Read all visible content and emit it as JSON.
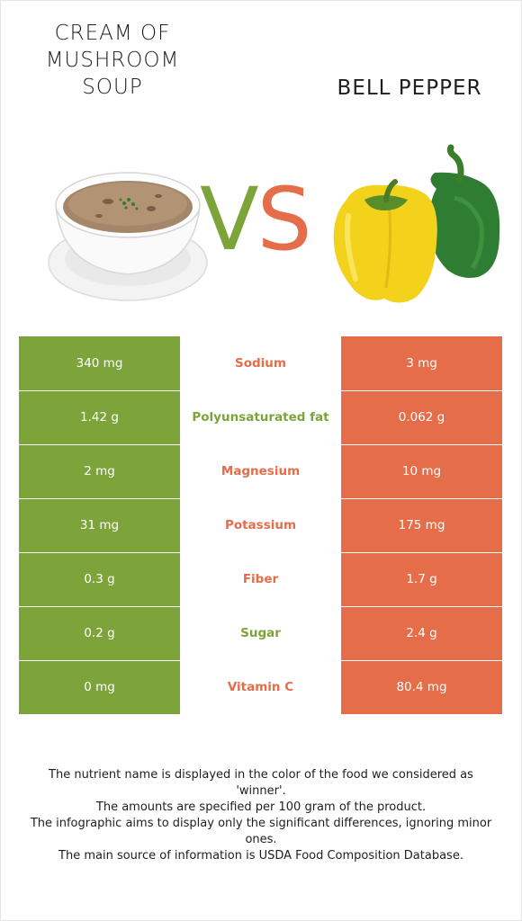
{
  "foods": {
    "left": {
      "name": "CREAM OF MUSHROOM SOUP",
      "name_lines": [
        "CREAM OF",
        "MUSHROOM",
        "SOUP"
      ],
      "color": "#7da43a"
    },
    "right": {
      "name": "BELL PEPPER",
      "color": "#e56d4a"
    }
  },
  "vs": {
    "v": "V",
    "s": "S"
  },
  "rows": [
    {
      "left": "340 mg",
      "nutrient": "Sodium",
      "right": "3 mg",
      "winner": "right"
    },
    {
      "left": "1.42 g",
      "nutrient": "Polyunsaturated fat",
      "right": "0.062 g",
      "winner": "left"
    },
    {
      "left": "2 mg",
      "nutrient": "Magnesium",
      "right": "10 mg",
      "winner": "right"
    },
    {
      "left": "31 mg",
      "nutrient": "Potassium",
      "right": "175 mg",
      "winner": "right"
    },
    {
      "left": "0.3 g",
      "nutrient": "Fiber",
      "right": "1.7 g",
      "winner": "right"
    },
    {
      "left": "0.2 g",
      "nutrient": "Sugar",
      "right": "2.4 g",
      "winner": "left"
    },
    {
      "left": "0 mg",
      "nutrient": "Vitamin C",
      "right": "80.4 mg",
      "winner": "right"
    }
  ],
  "footer": {
    "line1": "The nutrient name is displayed in the color of the food we considered as 'winner'.",
    "line2": "The amounts are specified per 100 gram of the product.",
    "line3": "The infographic aims to display only the significant differences, ignoring minor ones.",
    "line4": "The main source of information is USDA Food Composition Database."
  }
}
